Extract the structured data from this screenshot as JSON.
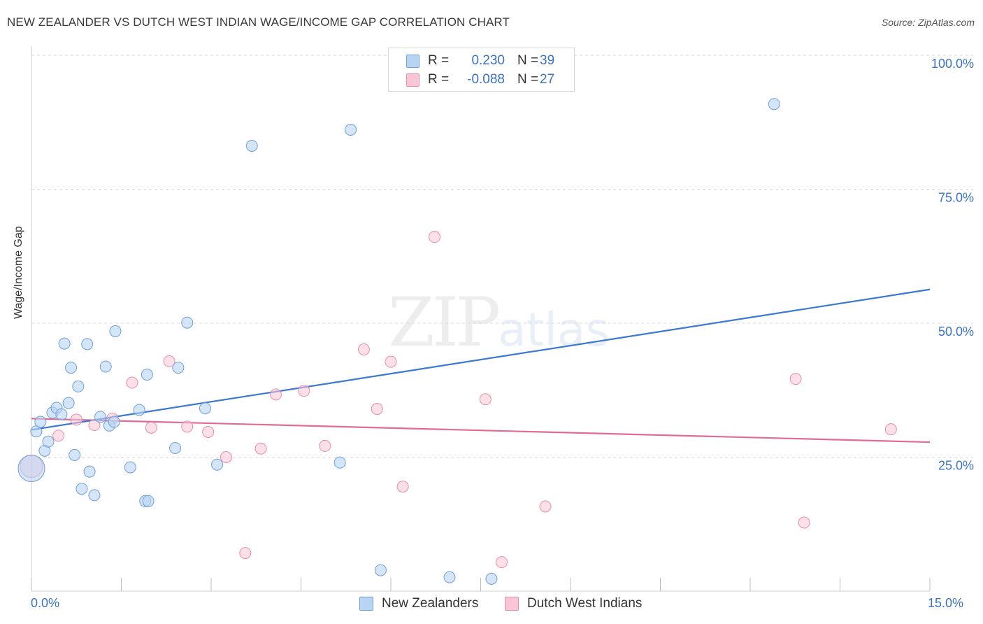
{
  "title": "NEW ZEALANDER VS DUTCH WEST INDIAN WAGE/INCOME GAP CORRELATION CHART",
  "source": "Source: ZipAtlas.com",
  "watermark": {
    "zip": "ZIP",
    "atlas": "atlas"
  },
  "legend_stats": [
    {
      "r_label": "R =",
      "r_value": "0.230",
      "n_label": "N =",
      "n_value": "39"
    },
    {
      "r_label": "R =",
      "r_value": "-0.088",
      "n_label": "N =",
      "n_value": "27"
    }
  ],
  "colors": {
    "blue_fill": "#b9d3f3",
    "blue_stroke": "#6f9fd8",
    "blue_line": "#3a78d4",
    "pink_fill": "#f9c6d6",
    "pink_stroke": "#e98cab",
    "pink_line": "#e26b96",
    "grid": "#d9d9d9",
    "tick_text": "#3a72c8"
  },
  "chart_data": {
    "type": "scatter",
    "title": "NEW ZEALANDER VS DUTCH WEST INDIAN WAGE/INCOME GAP CORRELATION CHART",
    "xlabel": "",
    "ylabel": "Wage/Income Gap",
    "xlim": [
      0,
      15
    ],
    "ylim": [
      0,
      100
    ],
    "x_tick_labels": [
      "0.0%",
      "15.0%"
    ],
    "y_tick_labels": [
      {
        "value": 25,
        "label": "25.0%"
      },
      {
        "value": 50,
        "label": "50.0%"
      },
      {
        "value": 75,
        "label": "75.0%"
      },
      {
        "value": 100,
        "label": "100.0%"
      }
    ],
    "legend_position": "bottom-center",
    "series": [
      {
        "name": "New Zealanders",
        "r": 0.23,
        "n": 39,
        "trend": {
          "x": [
            0,
            15
          ],
          "y": [
            30.1,
            56.3
          ]
        },
        "points": [
          {
            "x": 0.0,
            "y": 22.9
          },
          {
            "x": 0.08,
            "y": 29.8
          },
          {
            "x": 0.15,
            "y": 31.6
          },
          {
            "x": 0.22,
            "y": 26.2
          },
          {
            "x": 0.28,
            "y": 27.9
          },
          {
            "x": 0.35,
            "y": 33.3
          },
          {
            "x": 0.42,
            "y": 34.2
          },
          {
            "x": 0.5,
            "y": 33.0
          },
          {
            "x": 0.55,
            "y": 46.2
          },
          {
            "x": 0.62,
            "y": 35.1
          },
          {
            "x": 0.66,
            "y": 41.7
          },
          {
            "x": 0.72,
            "y": 25.4
          },
          {
            "x": 0.78,
            "y": 38.2
          },
          {
            "x": 0.84,
            "y": 19.1
          },
          {
            "x": 0.93,
            "y": 46.1
          },
          {
            "x": 0.97,
            "y": 22.3
          },
          {
            "x": 1.05,
            "y": 17.9
          },
          {
            "x": 1.15,
            "y": 32.5
          },
          {
            "x": 1.24,
            "y": 41.9
          },
          {
            "x": 1.3,
            "y": 30.9
          },
          {
            "x": 1.38,
            "y": 31.6
          },
          {
            "x": 1.4,
            "y": 48.5
          },
          {
            "x": 1.65,
            "y": 23.1
          },
          {
            "x": 1.8,
            "y": 33.8
          },
          {
            "x": 1.9,
            "y": 16.8
          },
          {
            "x": 1.95,
            "y": 16.8
          },
          {
            "x": 1.93,
            "y": 40.4
          },
          {
            "x": 2.4,
            "y": 26.7
          },
          {
            "x": 2.45,
            "y": 41.7
          },
          {
            "x": 2.6,
            "y": 50.1
          },
          {
            "x": 2.9,
            "y": 34.1
          },
          {
            "x": 3.1,
            "y": 23.6
          },
          {
            "x": 3.68,
            "y": 83.1
          },
          {
            "x": 5.33,
            "y": 86.1
          },
          {
            "x": 5.15,
            "y": 24.0
          },
          {
            "x": 5.83,
            "y": 3.9
          },
          {
            "x": 6.98,
            "y": 2.6
          },
          {
            "x": 7.68,
            "y": 2.3
          },
          {
            "x": 12.4,
            "y": 90.9
          }
        ]
      },
      {
        "name": "Dutch West Indians",
        "r": -0.088,
        "n": 27,
        "trend": {
          "x": [
            0,
            15
          ],
          "y": [
            32.2,
            27.8
          ]
        },
        "points": [
          {
            "x": 0.0,
            "y": 23.3
          },
          {
            "x": 0.45,
            "y": 29.0
          },
          {
            "x": 0.75,
            "y": 32.0
          },
          {
            "x": 1.05,
            "y": 31.0
          },
          {
            "x": 1.35,
            "y": 32.2
          },
          {
            "x": 1.68,
            "y": 38.9
          },
          {
            "x": 2.0,
            "y": 30.5
          },
          {
            "x": 2.3,
            "y": 42.9
          },
          {
            "x": 2.6,
            "y": 30.7
          },
          {
            "x": 2.95,
            "y": 29.7
          },
          {
            "x": 3.25,
            "y": 25.0
          },
          {
            "x": 3.57,
            "y": 7.1
          },
          {
            "x": 3.83,
            "y": 26.6
          },
          {
            "x": 4.08,
            "y": 36.7
          },
          {
            "x": 4.55,
            "y": 37.4
          },
          {
            "x": 4.9,
            "y": 27.1
          },
          {
            "x": 5.55,
            "y": 45.1
          },
          {
            "x": 5.77,
            "y": 34.0
          },
          {
            "x": 6.0,
            "y": 42.8
          },
          {
            "x": 6.2,
            "y": 19.5
          },
          {
            "x": 6.73,
            "y": 66.1
          },
          {
            "x": 7.58,
            "y": 35.8
          },
          {
            "x": 7.85,
            "y": 5.4
          },
          {
            "x": 8.58,
            "y": 15.8
          },
          {
            "x": 12.76,
            "y": 39.6
          },
          {
            "x": 12.9,
            "y": 12.8
          },
          {
            "x": 14.35,
            "y": 30.2
          }
        ]
      }
    ]
  }
}
